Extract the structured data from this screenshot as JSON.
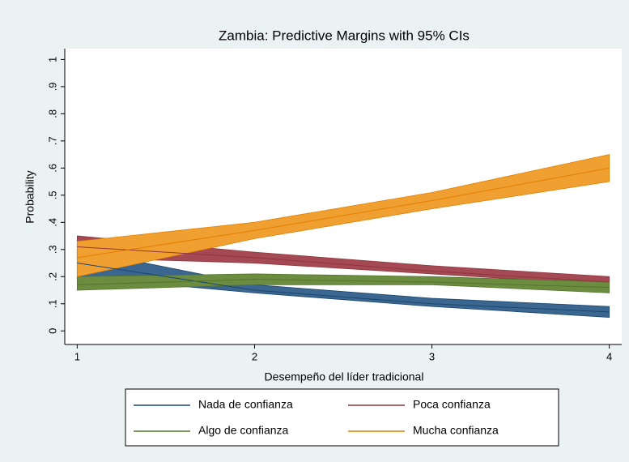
{
  "chart_data": {
    "type": "line",
    "title": "Zambia: Predictive Margins with 95% CIs",
    "x_label": "Desempeño del líder tradicional",
    "y_label": "Probability",
    "x": [
      1,
      2,
      3,
      4
    ],
    "xlim": [
      0.93,
      4.07
    ],
    "xticks": [
      1,
      2,
      3,
      4
    ],
    "ylim": [
      -0.05,
      1.04
    ],
    "yticks": [
      0,
      {
        "value": 0.1,
        "label": ".1"
      },
      {
        "value": 0.2,
        "label": ".2"
      },
      {
        "value": 0.3,
        "label": ".3"
      },
      {
        "value": 0.4,
        "label": ".4"
      },
      {
        "value": 0.5,
        "label": ".5"
      },
      {
        "value": 0.6,
        "label": ".6"
      },
      {
        "value": 0.7,
        "label": ".7"
      },
      {
        "value": 0.8,
        "label": ".8"
      },
      {
        "value": 0.9,
        "label": ".9"
      },
      1
    ],
    "legend": "bottom",
    "series": [
      {
        "name": "Nada de confianza",
        "color": "#1a476f",
        "band_color": "#3b6690",
        "values": [
          0.25,
          0.15,
          0.1,
          0.07
        ],
        "lower": [
          0.2,
          0.14,
          0.09,
          0.05
        ],
        "upper": [
          0.3,
          0.17,
          0.12,
          0.09
        ]
      },
      {
        "name": "Poca confianza",
        "color": "#90353b",
        "band_color": "#a54a55",
        "values": [
          0.31,
          0.27,
          0.22,
          0.18
        ],
        "lower": [
          0.27,
          0.25,
          0.21,
          0.17
        ],
        "upper": [
          0.35,
          0.29,
          0.24,
          0.2
        ]
      },
      {
        "name": "Algo de confianza",
        "color": "#55752f",
        "band_color": "#6c8c40",
        "values": [
          0.17,
          0.19,
          0.18,
          0.16
        ],
        "lower": [
          0.15,
          0.17,
          0.17,
          0.14
        ],
        "upper": [
          0.2,
          0.21,
          0.2,
          0.18
        ]
      },
      {
        "name": "Mucha confianza",
        "color": "#e37e00",
        "band_color": "#f0a030",
        "values": [
          0.27,
          0.37,
          0.48,
          0.6
        ],
        "lower": [
          0.2,
          0.34,
          0.45,
          0.55
        ],
        "upper": [
          0.33,
          0.4,
          0.51,
          0.65
        ]
      }
    ]
  }
}
